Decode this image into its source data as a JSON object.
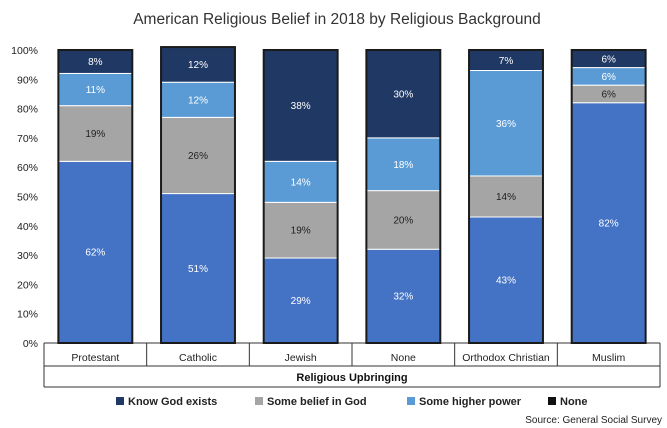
{
  "chart_data": {
    "type": "bar",
    "stacked": true,
    "title": "American Religious Belief in 2018 by Religious Background",
    "xlabel": "Religious Upbringing",
    "ylabel": "",
    "ylim": [
      0,
      100
    ],
    "y_ticks": [
      "0%",
      "10%",
      "20%",
      "30%",
      "40%",
      "50%",
      "60%",
      "70%",
      "80%",
      "90%",
      "100%"
    ],
    "categories": [
      "Protestant",
      "Catholic",
      "Jewish",
      "None",
      "Orthodox Christian",
      "Muslim"
    ],
    "series": [
      {
        "name": "Know God exists",
        "color": "#4472c4",
        "values": [
          62,
          51,
          29,
          32,
          43,
          82
        ],
        "labels": [
          "62%",
          "51%",
          "29%",
          "32%",
          "43%",
          "82%"
        ]
      },
      {
        "name": "Some belief in God",
        "color": "#a5a5a5",
        "values": [
          19,
          26,
          19,
          20,
          14,
          6
        ],
        "labels": [
          "19%",
          "26%",
          "19%",
          "20%",
          "14%",
          "6%"
        ]
      },
      {
        "name": "Some higher power",
        "color": "#5b9bd5",
        "values": [
          11,
          12,
          14,
          18,
          36,
          6
        ],
        "labels": [
          "11%",
          "12%",
          "14%",
          "18%",
          "36%",
          "6%"
        ]
      },
      {
        "name": "None",
        "color": "#203864",
        "values": [
          8,
          12,
          38,
          30,
          7,
          6
        ],
        "labels": [
          "8%",
          "12%",
          "38%",
          "30%",
          "7%",
          "6%"
        ]
      }
    ],
    "legend": {
      "position": "bottom",
      "entries": [
        {
          "label": "Know God exists",
          "color": "#203864"
        },
        {
          "label": "Some belief in God",
          "color": "#a5a5a5"
        },
        {
          "label": "Some higher power",
          "color": "#5b9bd5"
        },
        {
          "label": "None",
          "color": "#111111"
        }
      ]
    },
    "grid": false,
    "source": "Source: General Social Survey"
  }
}
